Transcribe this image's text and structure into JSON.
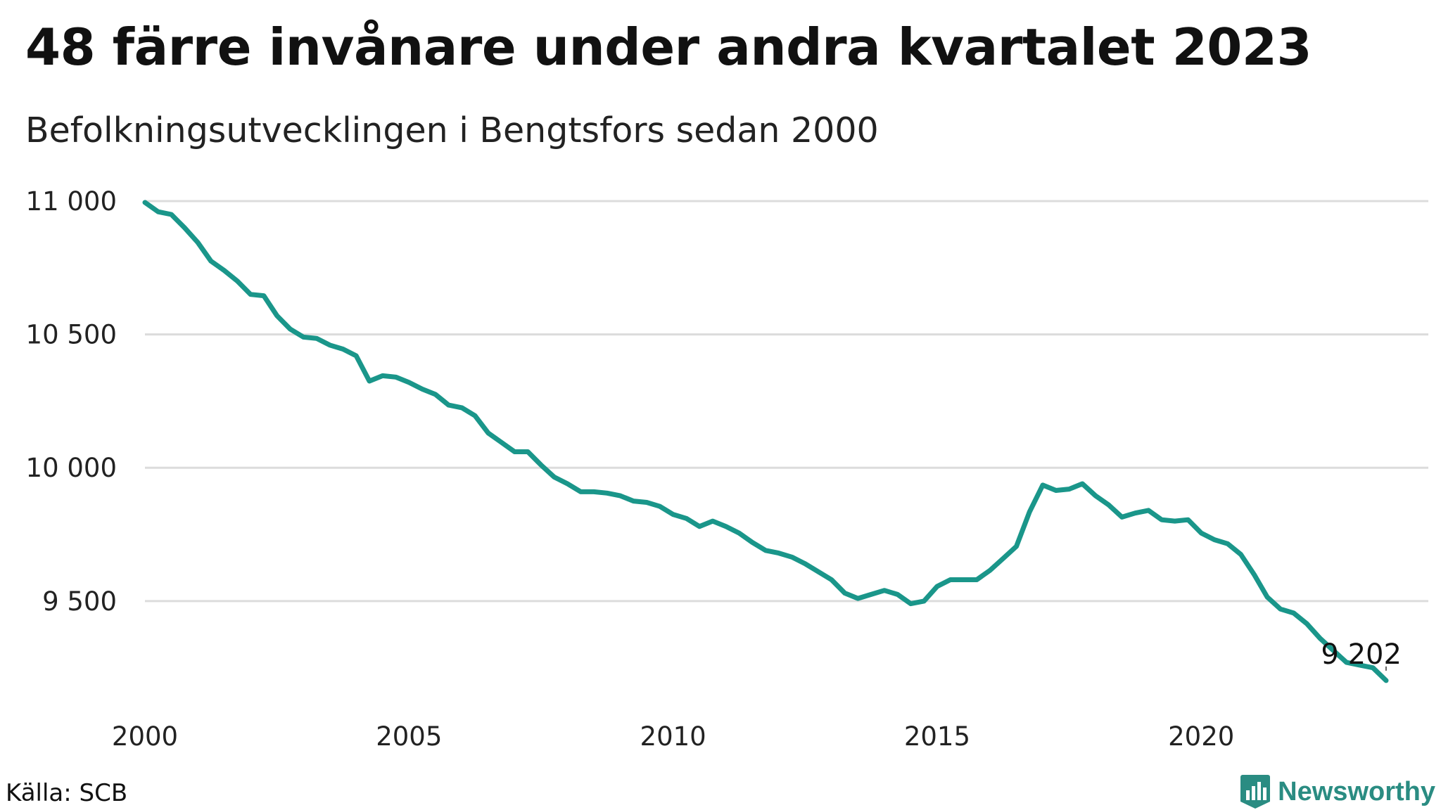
{
  "title": "48 färre invånare under andra kvartalet 2023",
  "subtitle": "Befolkningsutvecklingen i Bengtsfors sedan 2000",
  "source": "Källa: SCB",
  "brand": "Newsworthy",
  "colors": {
    "line": "#1a968a",
    "grid": "#dcdcdc",
    "brand": "#2a8c82"
  },
  "chart_data": {
    "type": "line",
    "title": "48 färre invånare under andra kvartalet 2023",
    "subtitle": "Befolkningsutvecklingen i Bengtsfors sedan 2000",
    "xlabel": "",
    "ylabel": "",
    "xlim": [
      2000,
      2024.3
    ],
    "ylim": [
      9170,
      11000
    ],
    "x_ticks": [
      2000,
      2005,
      2010,
      2015,
      2020
    ],
    "x_tick_labels": [
      "2000",
      "2005",
      "2010",
      "2015",
      "2020"
    ],
    "y_ticks": [
      9500,
      10000,
      10500,
      11000
    ],
    "y_tick_labels": [
      "9 500",
      "10 000",
      "10 500",
      "11 000"
    ],
    "grid": "horizontal",
    "legend": "none",
    "end_label": "9 202",
    "series": [
      {
        "x_start": 2000.0,
        "x_step": 0.25,
        "values": [
          10995,
          10960,
          10950,
          10900,
          10845,
          10775,
          10740,
          10700,
          10650,
          10645,
          10570,
          10520,
          10490,
          10485,
          10460,
          10445,
          10420,
          10325,
          10345,
          10340,
          10320,
          10295,
          10275,
          10235,
          10225,
          10195,
          10130,
          10095,
          10060,
          10060,
          10010,
          9965,
          9940,
          9910,
          9910,
          9905,
          9895,
          9875,
          9870,
          9855,
          9825,
          9810,
          9780,
          9800,
          9780,
          9755,
          9720,
          9690,
          9680,
          9665,
          9640,
          9610,
          9580,
          9530,
          9510,
          9525,
          9540,
          9525,
          9490,
          9500,
          9555,
          9580,
          9580,
          9580,
          9615,
          9660,
          9705,
          9835,
          9935,
          9915,
          9920,
          9940,
          9895,
          9860,
          9815,
          9830,
          9840,
          9805,
          9800,
          9805,
          9755,
          9730,
          9715,
          9675,
          9600,
          9515,
          9470,
          9455,
          9415,
          9360,
          9315,
          9270,
          9260,
          9250,
          9202
        ]
      }
    ]
  }
}
